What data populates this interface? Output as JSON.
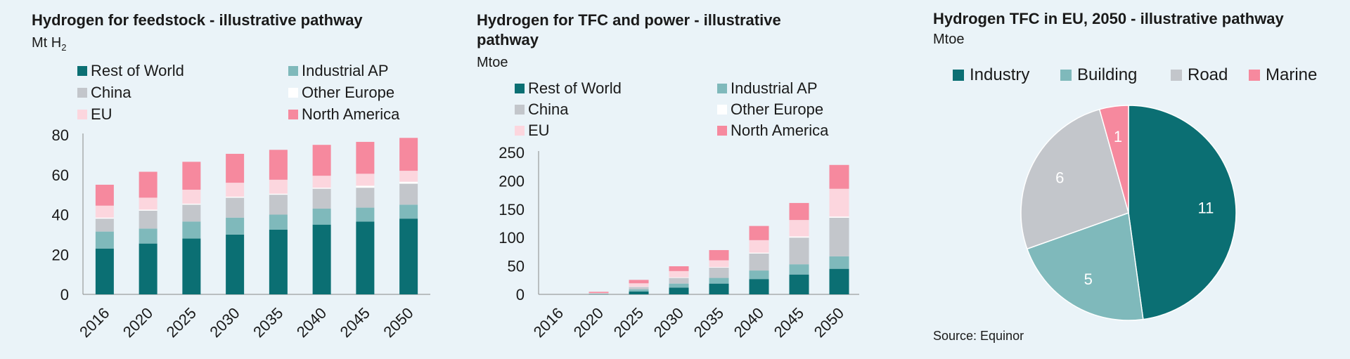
{
  "colors": {
    "rest_of_world": "#0b6f73",
    "industrial_ap": "#7fb9bb",
    "china": "#c3c6cb",
    "other_europe": "#ffffff",
    "eu": "#fcd6de",
    "north_america": "#f6899e",
    "industry": "#0b6f73",
    "building": "#7fb9bb",
    "road": "#c3c6cb",
    "marine": "#f6899e"
  },
  "panel1": {
    "title": "Hydrogen for feedstock - illustrative pathway",
    "unit_prefix": "Mt H",
    "unit_sub": "2",
    "legend": [
      "Rest of World",
      "Industrial AP",
      "China",
      "Other Europe",
      "EU",
      "North America"
    ]
  },
  "panel2": {
    "title": "Hydrogen for TFC and power - illustrative pathway",
    "unit": "Mtoe",
    "legend": [
      "Rest of World",
      "Industrial AP",
      "China",
      "Other Europe",
      "EU",
      "North America"
    ]
  },
  "panel3": {
    "title": "Hydrogen TFC in EU, 2050 - illustrative pathway",
    "unit": "Mtoe",
    "legend": [
      "Industry",
      "Building",
      "Road",
      "Marine"
    ],
    "source": "Source: Equinor"
  },
  "chart_data": [
    {
      "type": "bar",
      "stacked": true,
      "title": "Hydrogen for feedstock - illustrative pathway",
      "ylabel": "Mt H2",
      "ylim": [
        0,
        80
      ],
      "yticks": [
        0,
        20,
        40,
        60,
        80
      ],
      "categories": [
        "2016",
        "2020",
        "2025",
        "2030",
        "2035",
        "2040",
        "2045",
        "2050"
      ],
      "series": [
        {
          "name": "Rest of World",
          "key": "rest_of_world",
          "values": [
            23,
            25.5,
            28,
            30,
            32.5,
            35,
            36.5,
            38
          ]
        },
        {
          "name": "Industrial AP",
          "key": "industrial_ap",
          "values": [
            8.5,
            7.5,
            8.5,
            8.5,
            7.5,
            8,
            7,
            7
          ]
        },
        {
          "name": "China",
          "key": "china",
          "values": [
            6.5,
            9,
            8.5,
            10,
            10,
            10,
            10,
            10.5
          ]
        },
        {
          "name": "Other Europe",
          "key": "other_europe",
          "values": [
            0.5,
            0.5,
            0.5,
            0.5,
            0.5,
            0.5,
            1,
            1
          ]
        },
        {
          "name": "EU",
          "key": "eu",
          "values": [
            6,
            6,
            7,
            7,
            7,
            6,
            6,
            5.5
          ]
        },
        {
          "name": "North America",
          "key": "north_america",
          "values": [
            10.5,
            13,
            14,
            14.5,
            15,
            15.5,
            16,
            16.5
          ]
        }
      ],
      "legend": "top"
    },
    {
      "type": "bar",
      "stacked": true,
      "title": "Hydrogen for TFC and power - illustrative pathway",
      "ylabel": "Mtoe",
      "ylim": [
        0,
        250
      ],
      "yticks": [
        0,
        50,
        100,
        150,
        200,
        250
      ],
      "categories": [
        "2016",
        "2020",
        "2025",
        "2030",
        "2035",
        "2040",
        "2045",
        "2050"
      ],
      "series": [
        {
          "name": "Rest of World",
          "key": "rest_of_world",
          "values": [
            0,
            0.5,
            5,
            12,
            19,
            27,
            35,
            45
          ]
        },
        {
          "name": "Industrial AP",
          "key": "industrial_ap",
          "values": [
            0,
            0.5,
            4,
            7,
            10,
            15,
            18,
            22
          ]
        },
        {
          "name": "China",
          "key": "china",
          "values": [
            0,
            0.5,
            4,
            10,
            18,
            30,
            47,
            68
          ]
        },
        {
          "name": "Other Europe",
          "key": "other_europe",
          "values": [
            0,
            0,
            0.5,
            1,
            1,
            1.5,
            2,
            2
          ]
        },
        {
          "name": "EU",
          "key": "eu",
          "values": [
            0,
            1,
            6,
            11,
            12,
            22,
            29,
            49
          ]
        },
        {
          "name": "North America",
          "key": "north_america",
          "values": [
            0,
            2,
            6,
            8.5,
            18,
            25,
            30,
            42
          ]
        }
      ],
      "legend": "top"
    },
    {
      "type": "pie",
      "title": "Hydrogen TFC in EU, 2050 - illustrative pathway",
      "unit": "Mtoe",
      "slices": [
        {
          "label": "Industry",
          "key": "industry",
          "value": 11
        },
        {
          "label": "Building",
          "key": "building",
          "value": 5
        },
        {
          "label": "Road",
          "key": "road",
          "value": 6
        },
        {
          "label": "Marine",
          "key": "marine",
          "value": 1
        }
      ],
      "start_angle_deg": 0,
      "direction": "clockwise",
      "legend": "top"
    }
  ]
}
